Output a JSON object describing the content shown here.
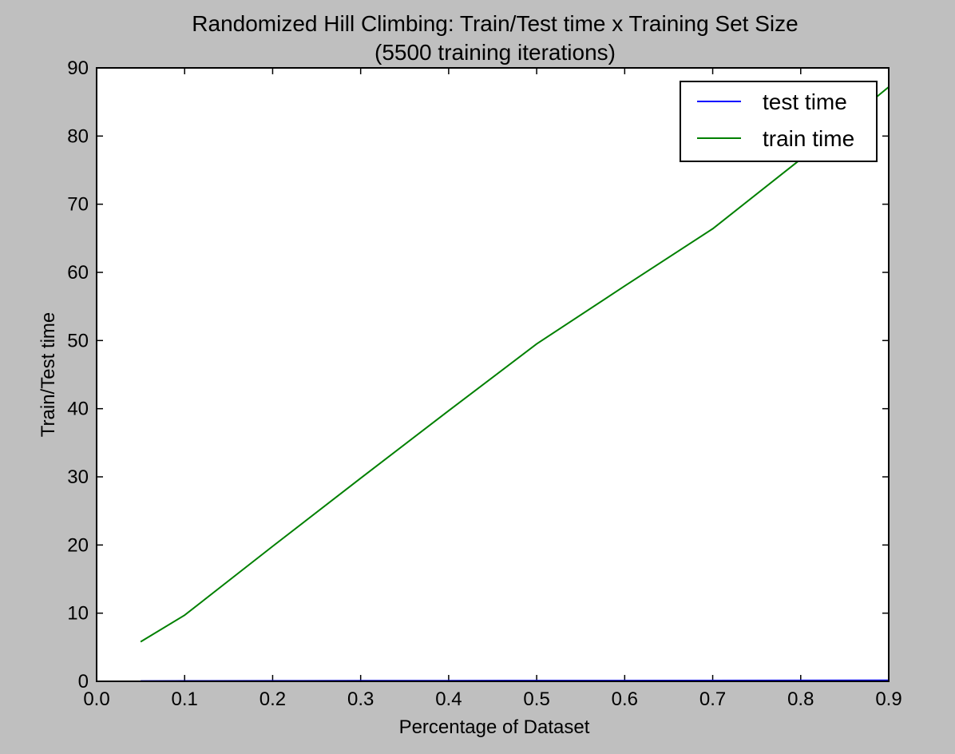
{
  "chart_data": {
    "type": "line",
    "title": "Randomized Hill Climbing: Train/Test time x Training Set Size",
    "subtitle": "(5500 training iterations)",
    "xlabel": "Percentage of Dataset",
    "ylabel": "Train/Test time",
    "xlim": [
      0.0,
      0.9
    ],
    "ylim": [
      0,
      90
    ],
    "x_ticks": [
      0.0,
      0.1,
      0.2,
      0.3,
      0.4,
      0.5,
      0.6,
      0.7,
      0.8,
      0.9
    ],
    "x_tick_labels": [
      "0.0",
      "0.1",
      "0.2",
      "0.3",
      "0.4",
      "0.5",
      "0.6",
      "0.7",
      "0.8",
      "0.9"
    ],
    "y_ticks": [
      0,
      10,
      20,
      30,
      40,
      50,
      60,
      70,
      80,
      90
    ],
    "y_tick_labels": [
      "0",
      "10",
      "20",
      "30",
      "40",
      "50",
      "60",
      "70",
      "80",
      "90"
    ],
    "grid": false,
    "legend_placement": "top-right",
    "series": [
      {
        "name": "test time",
        "color": "#0000ff",
        "x": [
          0.05,
          0.1,
          0.2,
          0.3,
          0.4,
          0.5,
          0.6,
          0.7,
          0.8,
          0.9
        ],
        "y": [
          0.05,
          0.06,
          0.07,
          0.08,
          0.09,
          0.1,
          0.11,
          0.12,
          0.13,
          0.14
        ]
      },
      {
        "name": "train time",
        "color": "#008000",
        "x": [
          0.05,
          0.1,
          0.2,
          0.3,
          0.4,
          0.5,
          0.6,
          0.7,
          0.8,
          0.9
        ],
        "y": [
          5.8,
          9.7,
          19.8,
          29.8,
          39.7,
          49.5,
          58.0,
          66.4,
          76.6,
          87.2
        ]
      }
    ]
  }
}
